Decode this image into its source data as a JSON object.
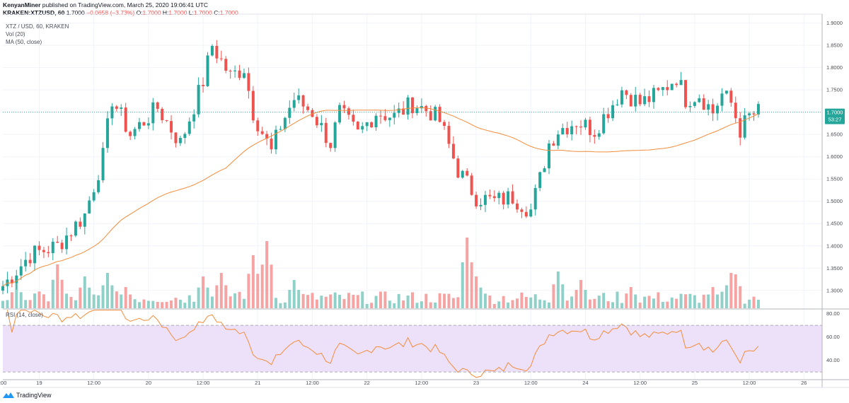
{
  "header": {
    "author": "KenyanMiner",
    "published_text": "published on TradingView.com, March 25, 2020 19:06:41 UTC",
    "symbol": "KRAKEN:XTZUSD, 60",
    "last": "1.7000",
    "change": "−0.0658 (−3.73%)",
    "o_label": "O:",
    "o_value": "1.7000",
    "h_label": "H:",
    "h_value": "1.7000",
    "l_label": "L:",
    "l_value": "1.7000",
    "c_label": "C:",
    "c_value": "1.7000"
  },
  "legend": {
    "title": "XTZ / USD, 60, KRAKEN",
    "vol": "Vol (20)",
    "ma": "MA (50, close)",
    "rsi": "RSI (14, close)"
  },
  "price_badge": {
    "value": "1.7000",
    "countdown": "53:27"
  },
  "footer": {
    "brand": "TradingView"
  },
  "colors": {
    "up": "#26a69a",
    "down": "#ef5350",
    "ma": "#f48c3a",
    "rsi": "#f48c3a",
    "rsi_band": "#ede1fa",
    "badge": "#26a69a"
  },
  "chart_data": {
    "type": "candlestick",
    "price_axis": {
      "ticks": [
        "1.9000",
        "1.8500",
        "1.8000",
        "1.7500",
        "1.7000",
        "1.6500",
        "1.6000",
        "1.5500",
        "1.5000",
        "1.4500",
        "1.4000",
        "1.3500",
        "1.3000"
      ],
      "range": [
        1.26,
        1.92
      ]
    },
    "rsi_axis": {
      "ticks": [
        "80.00",
        "60.00",
        "40.00"
      ],
      "range": [
        24,
        84
      ],
      "upper_band": 70,
      "lower_band": 30
    },
    "time_axis": {
      "ticks": [
        "19",
        "12:00",
        "20",
        "12:00",
        "21",
        "12:00",
        "22",
        "12:00",
        "23",
        "12:00",
        "24",
        "12:00",
        "25",
        "12:00",
        "26",
        "12:00"
      ],
      "hours_start": -8,
      "hours_end": 172
    },
    "anchors": [
      [
        -8,
        1.31
      ],
      [
        -2,
        1.38
      ],
      [
        4,
        1.4
      ],
      [
        10,
        1.47
      ],
      [
        14,
        1.6
      ],
      [
        16,
        1.73
      ],
      [
        20,
        1.65
      ],
      [
        26,
        1.71
      ],
      [
        31,
        1.63
      ],
      [
        36,
        1.77
      ],
      [
        38,
        1.85
      ],
      [
        42,
        1.78
      ],
      [
        45,
        1.8
      ],
      [
        47,
        1.7
      ],
      [
        51,
        1.61
      ],
      [
        53,
        1.67
      ],
      [
        56,
        1.73
      ],
      [
        60,
        1.7
      ],
      [
        64,
        1.63
      ],
      [
        66,
        1.7
      ],
      [
        70,
        1.65
      ],
      [
        74,
        1.7
      ],
      [
        78,
        1.69
      ],
      [
        82,
        1.72
      ],
      [
        86,
        1.7
      ],
      [
        88,
        1.68
      ],
      [
        92,
        1.57
      ],
      [
        96,
        1.51
      ],
      [
        100,
        1.5
      ],
      [
        104,
        1.51
      ],
      [
        108,
        1.48
      ],
      [
        110,
        1.55
      ],
      [
        112,
        1.63
      ],
      [
        114,
        1.66
      ],
      [
        118,
        1.68
      ],
      [
        122,
        1.66
      ],
      [
        126,
        1.72
      ],
      [
        128,
        1.75
      ],
      [
        132,
        1.72
      ],
      [
        136,
        1.74
      ],
      [
        140,
        1.78
      ],
      [
        142,
        1.73
      ],
      [
        145,
        1.74
      ],
      [
        148,
        1.7
      ],
      [
        150,
        1.74
      ],
      [
        152,
        1.72
      ],
      [
        154,
        1.66
      ],
      [
        156,
        1.69
      ],
      [
        158,
        1.7
      ]
    ],
    "volume_spikes": [
      [
        -5,
        0.35
      ],
      [
        4,
        0.62
      ],
      [
        10,
        0.45
      ],
      [
        15,
        0.5
      ],
      [
        19,
        0.3
      ],
      [
        36,
        0.45
      ],
      [
        40,
        0.5
      ],
      [
        47,
        0.75
      ],
      [
        50,
        0.95
      ],
      [
        56,
        0.4
      ],
      [
        94,
        1.0
      ],
      [
        96,
        0.45
      ],
      [
        114,
        0.52
      ],
      [
        119,
        0.4
      ],
      [
        130,
        0.3
      ],
      [
        148,
        0.3
      ],
      [
        152,
        0.5
      ],
      [
        153,
        0.48
      ]
    ]
  }
}
